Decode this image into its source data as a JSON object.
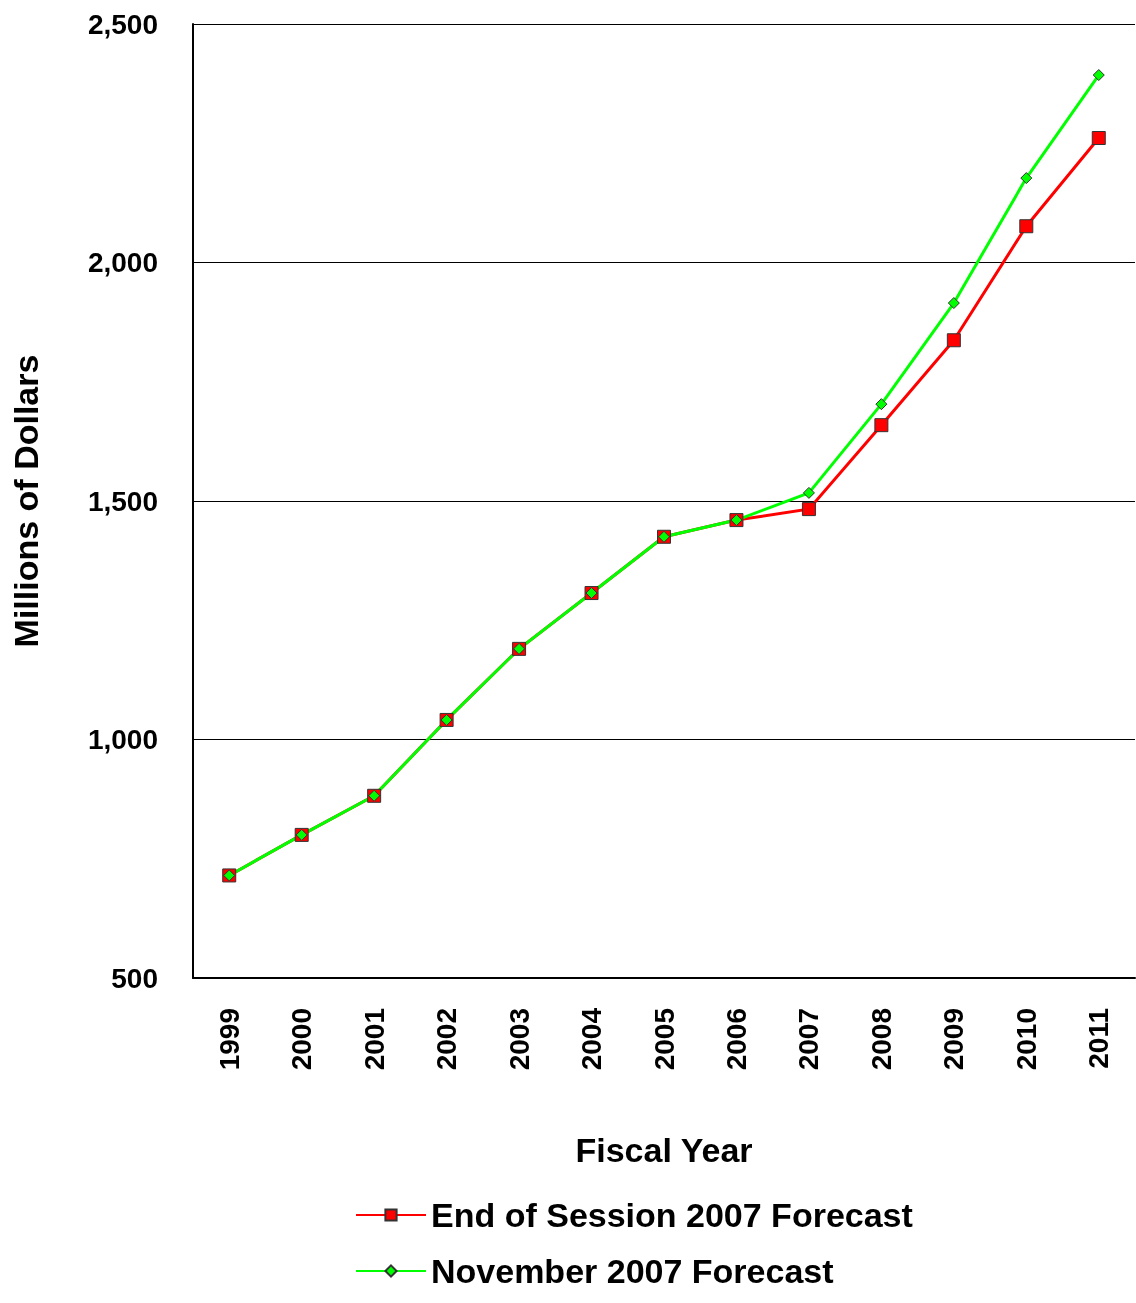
{
  "chart_data": {
    "type": "line",
    "xlabel": "Fiscal Year",
    "ylabel": "Millions of Dollars",
    "categories": [
      "1999",
      "2000",
      "2001",
      "2002",
      "2003",
      "2004",
      "2005",
      "2006",
      "2007",
      "2008",
      "2009",
      "2010",
      "2011"
    ],
    "series": [
      {
        "name": "End of Session 2007 Forecast",
        "color": "#ff0000",
        "marker": "square",
        "values": [
          715,
          800,
          882,
          1041,
          1190,
          1307,
          1425,
          1460,
          1483,
          1659,
          1837,
          2076,
          2261
        ]
      },
      {
        "name": "November 2007 Forecast",
        "color": "#00ff00",
        "marker": "diamond",
        "values": [
          715,
          800,
          882,
          1041,
          1190,
          1307,
          1425,
          1460,
          1517,
          1703,
          1915,
          2177,
          2393
        ]
      }
    ],
    "ylim": [
      500,
      2500
    ],
    "yticks": [
      500,
      {
        "value": 1000,
        "label": "1,000"
      },
      {
        "value": 1500,
        "label": "1,500"
      },
      {
        "value": 2000,
        "label": "2,000"
      },
      {
        "value": 2500,
        "label": "2,500"
      }
    ],
    "grid": "y",
    "legend": "bottom"
  }
}
